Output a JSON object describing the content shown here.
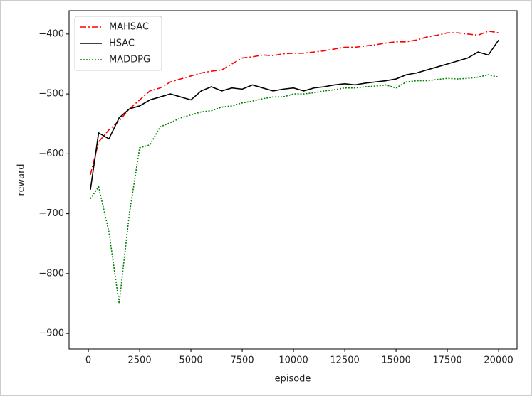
{
  "chart_data": {
    "type": "line",
    "xlabel": "episode",
    "ylabel": "reward",
    "x": [
      100,
      500,
      1000,
      1500,
      2000,
      2500,
      3000,
      3500,
      4000,
      4500,
      5000,
      5500,
      6000,
      6500,
      7000,
      7500,
      8000,
      8500,
      9000,
      9500,
      10000,
      10500,
      11000,
      11500,
      12000,
      12500,
      13000,
      13500,
      14000,
      14500,
      15000,
      15500,
      16000,
      16500,
      17000,
      17500,
      18000,
      18500,
      19000,
      19500,
      20000
    ],
    "series": [
      {
        "name": "MAHSAC",
        "color": "#ff0000",
        "dash": "8,3,2,3",
        "values": [
          -635,
          -580,
          -560,
          -545,
          -525,
          -510,
          -495,
          -490,
          -480,
          -475,
          -470,
          -465,
          -462,
          -460,
          -450,
          -440,
          -438,
          -435,
          -436,
          -433,
          -432,
          -432,
          -430,
          -428,
          -425,
          -422,
          -422,
          -420,
          -418,
          -415,
          -413,
          -413,
          -410,
          -405,
          -402,
          -398,
          -398,
          -400,
          -402,
          -395,
          -398
        ]
      },
      {
        "name": "HSAC",
        "color": "#000000",
        "dash": "none",
        "values": [
          -660,
          -565,
          -575,
          -540,
          -525,
          -520,
          -510,
          -505,
          -500,
          -505,
          -510,
          -495,
          -488,
          -495,
          -490,
          -492,
          -485,
          -490,
          -495,
          -492,
          -490,
          -495,
          -490,
          -488,
          -485,
          -483,
          -485,
          -482,
          -480,
          -478,
          -475,
          -468,
          -465,
          -460,
          -455,
          -450,
          -445,
          -440,
          -430,
          -435,
          -410
        ]
      },
      {
        "name": "MADDPG",
        "color": "#008000",
        "dash": "2,2",
        "values": [
          -675,
          -655,
          -730,
          -850,
          -700,
          -590,
          -585,
          -555,
          -548,
          -540,
          -535,
          -530,
          -528,
          -522,
          -520,
          -515,
          -512,
          -508,
          -505,
          -505,
          -500,
          -500,
          -498,
          -495,
          -493,
          -490,
          -490,
          -488,
          -487,
          -485,
          -490,
          -480,
          -478,
          -478,
          -476,
          -474,
          -475,
          -474,
          -472,
          -468,
          -472
        ]
      }
    ],
    "xlim": [
      -940,
      20900
    ],
    "ylim": [
      -926,
      -361
    ],
    "xticks": [
      0,
      2500,
      5000,
      7500,
      10000,
      12500,
      15000,
      17500,
      20000
    ],
    "yticks": [
      {
        "value": -900,
        "label": "−900"
      },
      {
        "value": -800,
        "label": "−800"
      },
      {
        "value": -700,
        "label": "−700"
      },
      {
        "value": -600,
        "label": "−600"
      },
      {
        "value": -500,
        "label": "−500"
      },
      {
        "value": -400,
        "label": "−400"
      }
    ],
    "legend": "upper left"
  }
}
